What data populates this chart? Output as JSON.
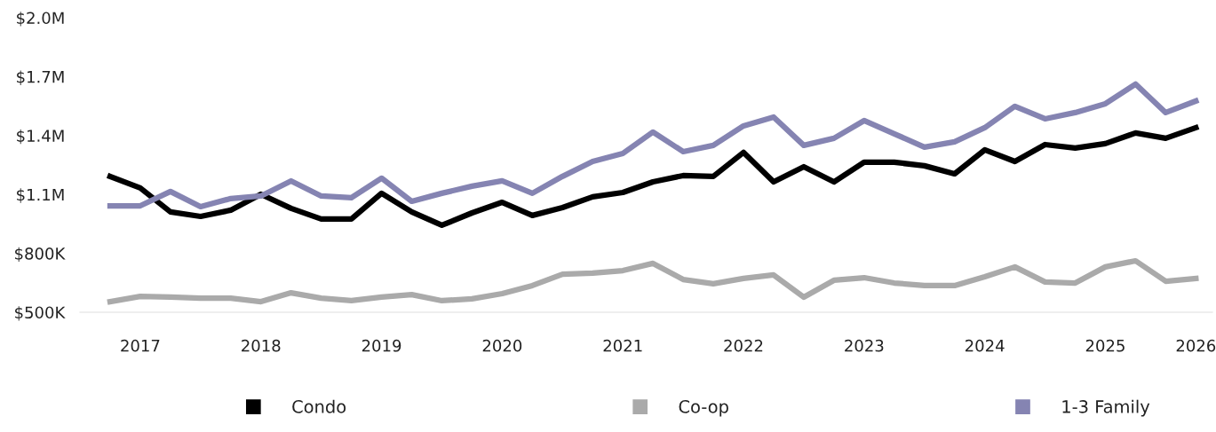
{
  "chart_data": {
    "type": "line",
    "categories": [
      null,
      "2017",
      null,
      null,
      null,
      "2018",
      null,
      null,
      null,
      "2019",
      null,
      null,
      null,
      "2020",
      null,
      null,
      null,
      "2021",
      null,
      null,
      null,
      "2022",
      null,
      null,
      null,
      "2023",
      null,
      null,
      null,
      "2024",
      null,
      null,
      null,
      "2025",
      null,
      null,
      "2026"
    ],
    "series": [
      {
        "name": "Condo",
        "color": "#000000",
        "values": [
          1192000,
          1133000,
          1011000,
          988000,
          1020000,
          1101000,
          1029000,
          975000,
          975000,
          1106000,
          1011000,
          943000,
          1006000,
          1060000,
          993000,
          1033000,
          1088000,
          1110000,
          1164000,
          1196000,
          1192000,
          1314000,
          1164000,
          1241000,
          1164000,
          1264000,
          1264000,
          1246000,
          1205000,
          1327000,
          1268000,
          1354000,
          1336000,
          1359000,
          1413000,
          1386000,
          1440000
        ]
      },
      {
        "name": "Co-op",
        "color": "#aaaaaa",
        "values": [
          554000,
          581000,
          577000,
          572000,
          572000,
          554000,
          599000,
          572000,
          559000,
          577000,
          590000,
          559000,
          568000,
          595000,
          636000,
          694000,
          699000,
          712000,
          749000,
          667000,
          645000,
          672000,
          690000,
          577000,
          663000,
          676000,
          649000,
          636000,
          636000,
          681000,
          731000,
          654000,
          649000,
          731000,
          762000,
          658000,
          672000
        ]
      },
      {
        "name": "1-3 Family",
        "color": "#8584b2",
        "values": [
          1042000,
          1042000,
          1115000,
          1038000,
          1079000,
          1092000,
          1169000,
          1092000,
          1083000,
          1183000,
          1065000,
          1106000,
          1142000,
          1169000,
          1106000,
          1192000,
          1268000,
          1309000,
          1418000,
          1318000,
          1350000,
          1449000,
          1494000,
          1350000,
          1386000,
          1476000,
          1409000,
          1341000,
          1368000,
          1440000,
          1549000,
          1485000,
          1517000,
          1562000,
          1662000,
          1517000,
          1576000
        ]
      }
    ],
    "ylim": [
      500000,
      2000000
    ],
    "yticks": [
      {
        "value": 500000,
        "label": "$500K"
      },
      {
        "value": 800000,
        "label": "$800K"
      },
      {
        "value": 1100000,
        "label": "$1.1M"
      },
      {
        "value": 1400000,
        "label": "$1.4M"
      },
      {
        "value": 1700000,
        "label": "$1.7M"
      },
      {
        "value": 2000000,
        "label": "$2.0M"
      }
    ],
    "grid": false,
    "legend": "bottom",
    "line_style": "solid"
  }
}
